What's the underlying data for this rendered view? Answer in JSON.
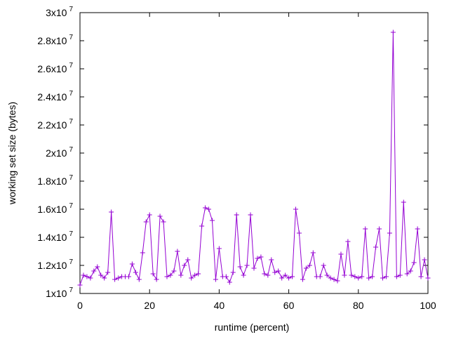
{
  "chart_data": {
    "type": "line",
    "title": "",
    "xlabel": "runtime (percent)",
    "ylabel": "working set size (bytes)",
    "xlim": [
      0,
      100
    ],
    "ylim": [
      10000000,
      30000000
    ],
    "x_ticks": [
      0,
      20,
      40,
      60,
      80,
      100
    ],
    "x_tick_labels": [
      "0",
      "20",
      "40",
      "60",
      "80",
      "100"
    ],
    "y_ticks": [
      {
        "value": 10000000,
        "mantissa": "1x10",
        "exp": "7"
      },
      {
        "value": 12000000,
        "mantissa": "1.2x10",
        "exp": "7"
      },
      {
        "value": 14000000,
        "mantissa": "1.4x10",
        "exp": "7"
      },
      {
        "value": 16000000,
        "mantissa": "1.6x10",
        "exp": "7"
      },
      {
        "value": 18000000,
        "mantissa": "1.8x10",
        "exp": "7"
      },
      {
        "value": 20000000,
        "mantissa": "2x10",
        "exp": "7"
      },
      {
        "value": 22000000,
        "mantissa": "2.2x10",
        "exp": "7"
      },
      {
        "value": 24000000,
        "mantissa": "2.4x10",
        "exp": "7"
      },
      {
        "value": 26000000,
        "mantissa": "2.6x10",
        "exp": "7"
      },
      {
        "value": 28000000,
        "mantissa": "2.8x10",
        "exp": "7"
      },
      {
        "value": 30000000,
        "mantissa": "3x10",
        "exp": "7"
      }
    ],
    "grid": false,
    "legend": "none",
    "series": [
      {
        "color": "#9400d3",
        "marker": "plus",
        "x": [
          0,
          1,
          2,
          3,
          4,
          5,
          6,
          7,
          8,
          9,
          10,
          11,
          12,
          13,
          14,
          15,
          16,
          17,
          18,
          19,
          20,
          21,
          22,
          23,
          24,
          25,
          26,
          27,
          28,
          29,
          30,
          31,
          32,
          33,
          34,
          35,
          36,
          37,
          38,
          39,
          40,
          41,
          42,
          43,
          44,
          45,
          46,
          47,
          48,
          49,
          50,
          51,
          52,
          53,
          54,
          55,
          56,
          57,
          58,
          59,
          60,
          61,
          62,
          63,
          64,
          65,
          66,
          67,
          68,
          69,
          70,
          71,
          72,
          73,
          74,
          75,
          76,
          77,
          78,
          79,
          80,
          81,
          82,
          83,
          84,
          85,
          86,
          87,
          88,
          89,
          90,
          91,
          92,
          93,
          94,
          95,
          96,
          97,
          98,
          99,
          100
        ],
        "y": [
          10600000,
          11300000,
          11200000,
          11100000,
          11600000,
          11900000,
          11300000,
          11100000,
          11500000,
          15800000,
          11000000,
          11100000,
          11200000,
          11200000,
          11200000,
          12100000,
          11500000,
          11000000,
          12900000,
          15100000,
          15600000,
          11400000,
          11000000,
          15500000,
          15100000,
          11200000,
          11300000,
          11600000,
          13000000,
          11300000,
          12000000,
          12400000,
          11100000,
          11300000,
          11400000,
          14800000,
          16100000,
          16000000,
          15200000,
          11000000,
          13200000,
          11200000,
          11200000,
          10800000,
          11500000,
          15600000,
          11900000,
          11300000,
          12000000,
          15600000,
          11800000,
          12500000,
          12600000,
          11400000,
          11300000,
          12400000,
          11500000,
          11600000,
          11100000,
          11300000,
          11100000,
          11200000,
          16000000,
          14300000,
          11000000,
          11800000,
          12000000,
          12900000,
          11200000,
          11200000,
          12000000,
          11300000,
          11100000,
          11000000,
          10900000,
          12800000,
          11300000,
          13700000,
          11300000,
          11200000,
          11100000,
          11200000,
          14600000,
          11100000,
          11200000,
          13300000,
          14600000,
          11100000,
          11200000,
          14300000,
          28600000,
          11200000,
          11300000,
          16500000,
          11400000,
          11600000,
          12200000,
          14600000,
          11200000,
          12400000,
          11100000
        ]
      }
    ]
  }
}
